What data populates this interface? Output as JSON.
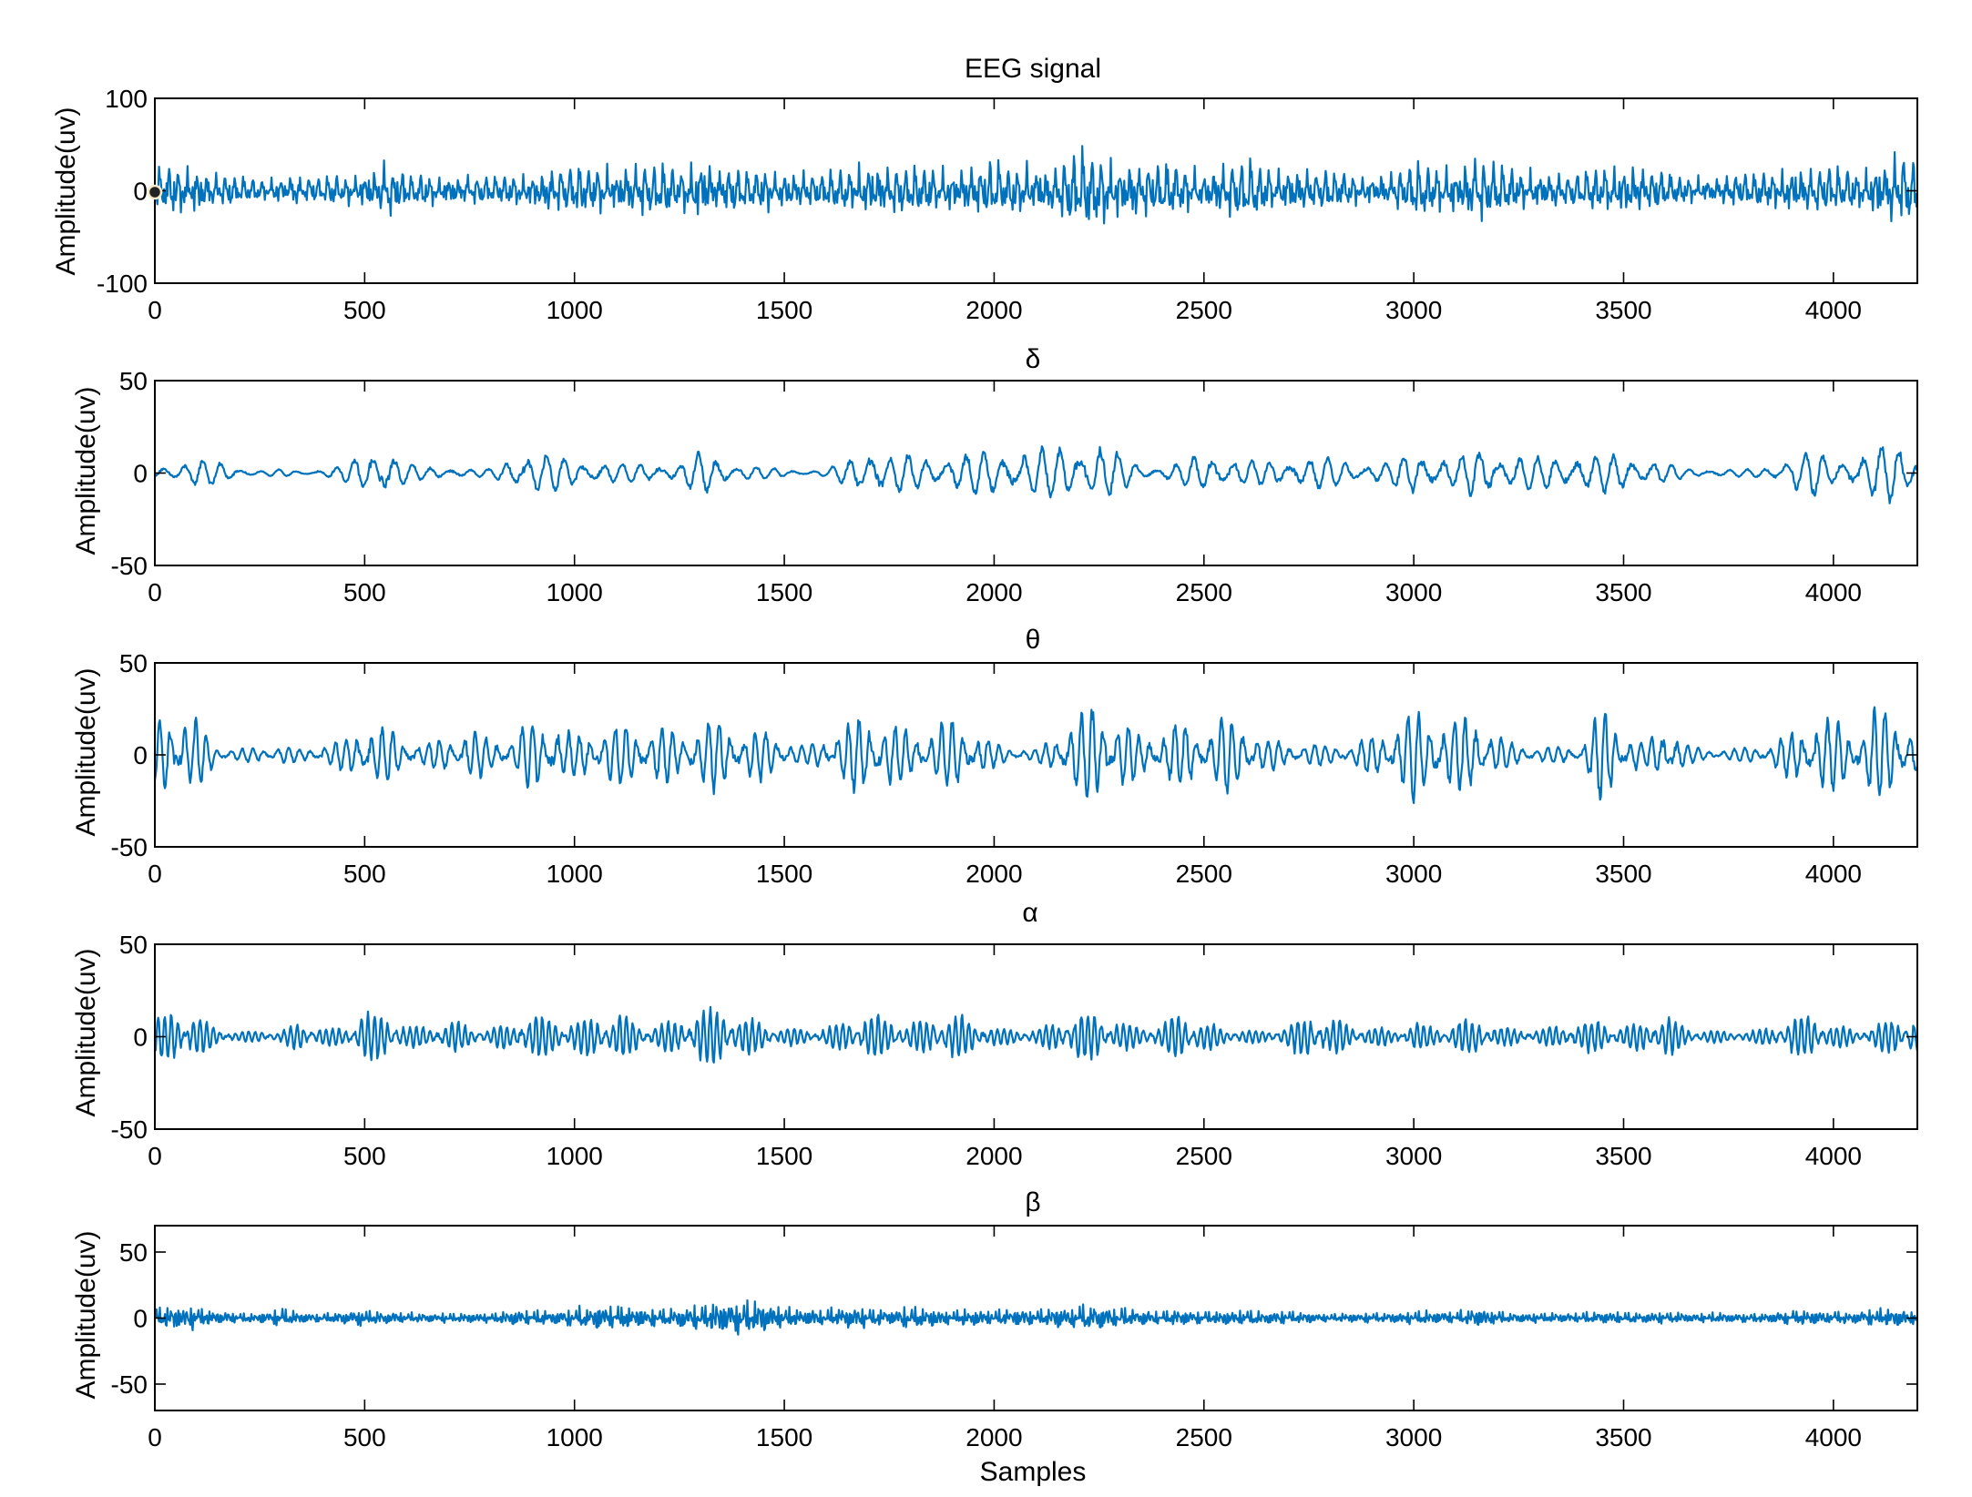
{
  "chart_data": [
    {
      "type": "line",
      "title": "EEG signal",
      "ylabel": "Amplitude(uv)",
      "xlabel": "",
      "xlim": [
        0,
        4200
      ],
      "ylim": [
        -100,
        100
      ],
      "xticks": [
        0,
        500,
        1000,
        1500,
        2000,
        2500,
        3000,
        3500,
        4000
      ],
      "yticks": [
        -100,
        0,
        100
      ],
      "series": [
        {
          "color": "#0072BD",
          "x": [
            0,
            50,
            100,
            150,
            200,
            250,
            300,
            350,
            400,
            450,
            500,
            550,
            600,
            650,
            700,
            750,
            800,
            850,
            900,
            950,
            1000,
            1050,
            1100,
            1150,
            1200,
            1250,
            1300,
            1350,
            1400,
            1450,
            1500,
            1550,
            1600,
            1650,
            1700,
            1750,
            1800,
            1850,
            1900,
            1950,
            2000,
            2050,
            2100,
            2150,
            2200,
            2250,
            2300,
            2350,
            2400,
            2450,
            2500,
            2550,
            2600,
            2650,
            2700,
            2750,
            2800,
            2850,
            2900,
            2950,
            3000,
            3050,
            3100,
            3150,
            3200,
            3250,
            3300,
            3350,
            3400,
            3450,
            3500,
            3550,
            3600,
            3650,
            3700,
            3750,
            3800,
            3850,
            3900,
            3950,
            4000,
            4050,
            4100,
            4150,
            4200
          ],
          "envelope": [
            22,
            30,
            25,
            18,
            15,
            14,
            16,
            15,
            14,
            16,
            20,
            30,
            18,
            17,
            16,
            15,
            15,
            16,
            22,
            25,
            28,
            26,
            24,
            27,
            26,
            24,
            32,
            25,
            22,
            23,
            22,
            20,
            18,
            24,
            30,
            28,
            26,
            24,
            25,
            27,
            30,
            28,
            26,
            30,
            40,
            42,
            38,
            28,
            30,
            27,
            22,
            28,
            30,
            26,
            25,
            22,
            20,
            17,
            16,
            18,
            30,
            26,
            28,
            38,
            26,
            22,
            20,
            18,
            20,
            28,
            30,
            25,
            18,
            15,
            14,
            16,
            18,
            20,
            30,
            28,
            24,
            22,
            30,
            40,
            30
          ]
        }
      ]
    },
    {
      "type": "line",
      "title": "δ",
      "ylabel": "Amplitude(uv)",
      "xlabel": "",
      "xlim": [
        0,
        4200
      ],
      "ylim": [
        -50,
        50
      ],
      "xticks": [
        0,
        500,
        1000,
        1500,
        2000,
        2500,
        3000,
        3500,
        4000
      ],
      "yticks": [
        -50,
        0,
        50
      ],
      "series": [
        {
          "color": "#0072BD",
          "x": [
            0,
            50,
            100,
            150,
            200,
            250,
            300,
            350,
            400,
            450,
            500,
            550,
            600,
            650,
            700,
            750,
            800,
            850,
            900,
            950,
            1000,
            1050,
            1100,
            1150,
            1200,
            1250,
            1300,
            1350,
            1400,
            1450,
            1500,
            1550,
            1600,
            1650,
            1700,
            1750,
            1800,
            1850,
            1900,
            1950,
            2000,
            2050,
            2100,
            2150,
            2200,
            2250,
            2300,
            2350,
            2400,
            2450,
            2500,
            2550,
            2600,
            2650,
            2700,
            2750,
            2800,
            2850,
            2900,
            2950,
            3000,
            3050,
            3100,
            3150,
            3200,
            3250,
            3300,
            3350,
            3400,
            3450,
            3500,
            3550,
            3600,
            3650,
            3700,
            3750,
            3800,
            3850,
            3900,
            3950,
            4000,
            4050,
            4100,
            4150,
            4200
          ],
          "envelope": [
            3,
            5,
            7,
            6,
            3,
            1,
            2,
            1,
            2,
            4,
            10,
            14,
            5,
            3,
            3,
            2,
            2,
            8,
            12,
            9,
            7,
            6,
            5,
            5,
            5,
            4,
            12,
            7,
            4,
            3,
            2,
            1,
            2,
            6,
            14,
            10,
            9,
            8,
            9,
            10,
            11,
            12,
            12,
            14,
            15,
            15,
            10,
            4,
            3,
            6,
            10,
            8,
            6,
            6,
            7,
            8,
            8,
            6,
            5,
            6,
            12,
            9,
            7,
            13,
            11,
            9,
            8,
            9,
            10,
            10,
            9,
            9,
            5,
            2,
            2,
            2,
            2,
            3,
            10,
            12,
            6,
            9,
            14,
            15,
            8
          ]
        }
      ]
    },
    {
      "type": "line",
      "title": "θ",
      "ylabel": "Amplitude(uv)",
      "xlabel": "",
      "xlim": [
        0,
        4200
      ],
      "ylim": [
        -50,
        50
      ],
      "xticks": [
        0,
        500,
        1000,
        1500,
        2000,
        2500,
        3000,
        3500,
        4000
      ],
      "yticks": [
        -50,
        0,
        50
      ],
      "series": [
        {
          "color": "#0072BD",
          "x": [
            0,
            50,
            100,
            150,
            200,
            250,
            300,
            350,
            400,
            450,
            500,
            550,
            600,
            650,
            700,
            750,
            800,
            850,
            900,
            950,
            1000,
            1050,
            1100,
            1150,
            1200,
            1250,
            1300,
            1350,
            1400,
            1450,
            1500,
            1550,
            1600,
            1650,
            1700,
            1750,
            1800,
            1850,
            1900,
            1950,
            2000,
            2050,
            2100,
            2150,
            2200,
            2250,
            2300,
            2350,
            2400,
            2450,
            2500,
            2550,
            2600,
            2650,
            2700,
            2750,
            2800,
            2850,
            2900,
            2950,
            3000,
            3050,
            3100,
            3150,
            3200,
            3250,
            3300,
            3350,
            3400,
            3450,
            3500,
            3550,
            3600,
            3650,
            3700,
            3750,
            3800,
            3850,
            3900,
            3950,
            4000,
            4050,
            4100,
            4150,
            4200
          ],
          "envelope": [
            15,
            25,
            18,
            5,
            3,
            4,
            5,
            3,
            6,
            8,
            16,
            15,
            8,
            6,
            10,
            14,
            9,
            8,
            20,
            18,
            10,
            14,
            16,
            14,
            16,
            12,
            20,
            18,
            12,
            14,
            8,
            4,
            10,
            16,
            22,
            18,
            12,
            15,
            18,
            14,
            6,
            4,
            3,
            10,
            24,
            25,
            20,
            10,
            14,
            18,
            12,
            20,
            15,
            8,
            6,
            6,
            5,
            6,
            10,
            14,
            24,
            20,
            18,
            20,
            10,
            5,
            4,
            4,
            6,
            26,
            15,
            5,
            18,
            5,
            3,
            3,
            4,
            6,
            12,
            20,
            18,
            16,
            25,
            22,
            10
          ]
        }
      ]
    },
    {
      "type": "line",
      "title": "α",
      "ylabel": "Amplitude(uv)",
      "xlabel": "",
      "xlim": [
        0,
        4200
      ],
      "ylim": [
        -50,
        50
      ],
      "xticks": [
        0,
        500,
        1000,
        1500,
        2000,
        2500,
        3000,
        3500,
        4000
      ],
      "yticks": [
        -50,
        0,
        50
      ],
      "series": [
        {
          "color": "#0072BD",
          "x": [
            0,
            50,
            100,
            150,
            200,
            250,
            300,
            350,
            400,
            450,
            500,
            550,
            600,
            650,
            700,
            750,
            800,
            850,
            900,
            950,
            1000,
            1050,
            1100,
            1150,
            1200,
            1250,
            1300,
            1350,
            1400,
            1450,
            1500,
            1550,
            1600,
            1650,
            1700,
            1750,
            1800,
            1850,
            1900,
            1950,
            2000,
            2050,
            2100,
            2150,
            2200,
            2250,
            2300,
            2350,
            2400,
            2450,
            2500,
            2550,
            2600,
            2650,
            2700,
            2750,
            2800,
            2850,
            2900,
            2950,
            3000,
            3050,
            3100,
            3150,
            3200,
            3250,
            3300,
            3350,
            3400,
            3450,
            3500,
            3550,
            3600,
            3650,
            3700,
            3750,
            3800,
            3850,
            3900,
            3950,
            4000,
            4050,
            4100,
            4150,
            4200
          ],
          "envelope": [
            10,
            14,
            12,
            4,
            3,
            3,
            3,
            8,
            5,
            5,
            14,
            12,
            6,
            5,
            8,
            6,
            4,
            8,
            12,
            10,
            8,
            12,
            12,
            8,
            7,
            8,
            14,
            14,
            10,
            8,
            5,
            4,
            5,
            8,
            12,
            10,
            7,
            9,
            12,
            9,
            5,
            4,
            4,
            8,
            12,
            12,
            8,
            5,
            7,
            13,
            8,
            4,
            4,
            3,
            6,
            12,
            10,
            6,
            5,
            4,
            8,
            5,
            8,
            10,
            5,
            4,
            4,
            6,
            8,
            8,
            5,
            8,
            12,
            5,
            3,
            3,
            3,
            5,
            10,
            12,
            6,
            4,
            6,
            10,
            12
          ]
        }
      ]
    },
    {
      "type": "line",
      "title": "β",
      "ylabel": "Amplitude(uv)",
      "xlabel": "Samples",
      "xlim": [
        0,
        4200
      ],
      "ylim": [
        -70,
        70
      ],
      "xticks": [
        0,
        500,
        1000,
        1500,
        2000,
        2500,
        3000,
        3500,
        4000
      ],
      "yticks": [
        -50,
        0,
        50
      ],
      "series": [
        {
          "color": "#0072BD",
          "x": [
            0,
            50,
            100,
            150,
            200,
            250,
            300,
            350,
            400,
            450,
            500,
            550,
            600,
            650,
            700,
            750,
            800,
            850,
            900,
            950,
            1000,
            1050,
            1100,
            1150,
            1200,
            1250,
            1300,
            1350,
            1400,
            1450,
            1500,
            1550,
            1600,
            1650,
            1700,
            1750,
            1800,
            1850,
            1900,
            1950,
            2000,
            2050,
            2100,
            2150,
            2200,
            2250,
            2300,
            2350,
            2400,
            2450,
            2500,
            2550,
            2600,
            2650,
            2700,
            2750,
            2800,
            2850,
            2900,
            2950,
            3000,
            3050,
            3100,
            3150,
            3200,
            3250,
            3300,
            3350,
            3400,
            3450,
            3500,
            3550,
            3600,
            3650,
            3700,
            3750,
            3800,
            3850,
            3900,
            3950,
            4000,
            4050,
            4100,
            4150,
            4200
          ],
          "envelope": [
            8,
            10,
            10,
            5,
            4,
            4,
            8,
            4,
            4,
            5,
            7,
            5,
            4,
            4,
            4,
            4,
            4,
            6,
            6,
            5,
            8,
            10,
            10,
            9,
            7,
            8,
            12,
            12,
            14,
            12,
            8,
            7,
            7,
            9,
            8,
            6,
            10,
            8,
            6,
            7,
            6,
            7,
            6,
            9,
            10,
            10,
            8,
            6,
            6,
            6,
            5,
            6,
            6,
            5,
            5,
            4,
            4,
            4,
            4,
            4,
            6,
            6,
            5,
            8,
            6,
            4,
            4,
            4,
            4,
            5,
            5,
            4,
            5,
            4,
            4,
            4,
            4,
            4,
            6,
            6,
            5,
            5,
            7,
            8,
            6
          ]
        }
      ]
    }
  ]
}
